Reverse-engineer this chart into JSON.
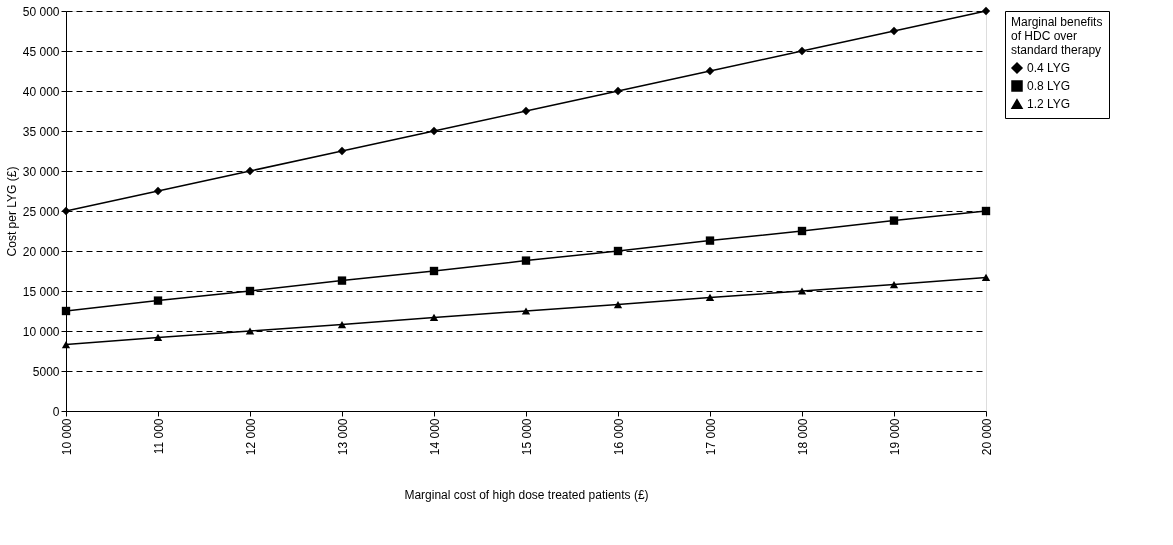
{
  "chart_data": {
    "type": "line",
    "xlabel": "Marginal cost of high dose treated patients (£)",
    "ylabel": "Cost per LYG (£)",
    "legend_title": "Marginal benefits of HDC over standard therapy",
    "categories": [
      "10 000",
      "11 000",
      "12 000",
      "13 000",
      "14 000",
      "15 000",
      "16 000",
      "17 000",
      "18 000",
      "19 000",
      "20 000"
    ],
    "series": [
      {
        "name": "0.4 LYG",
        "color": "#000000",
        "marker": "diamond",
        "values": [
          25000,
          27500,
          30000,
          32500,
          35000,
          37500,
          40000,
          42500,
          45000,
          47500,
          50000
        ]
      },
      {
        "name": "0.8 LYG",
        "color": "#000000",
        "marker": "square",
        "values": [
          12500,
          13800,
          15000,
          16300,
          17500,
          18800,
          20000,
          21300,
          22500,
          23800,
          25000
        ]
      },
      {
        "name": "1.2 LYG",
        "color": "#000000",
        "marker": "triangle",
        "values": [
          8300,
          9200,
          10000,
          10800,
          11700,
          12500,
          13300,
          14200,
          15000,
          15800,
          16700
        ]
      }
    ],
    "ylim": [
      0,
      50000
    ],
    "yticks": [
      0,
      5000,
      {
        "value": 10000,
        "label": "10 000"
      },
      {
        "value": 15000,
        "label": "15 000"
      },
      {
        "value": 20000,
        "label": "20 000"
      },
      {
        "value": 25000,
        "label": "25 000"
      },
      {
        "value": 30000,
        "label": "30 000"
      },
      {
        "value": 35000,
        "label": "35 000"
      },
      {
        "value": 40000,
        "label": "40 000"
      },
      {
        "value": 45000,
        "label": "45 000"
      },
      {
        "value": 50000,
        "label": "50 000"
      }
    ],
    "grid": "y",
    "legend": "right",
    "line_style": "solid"
  }
}
